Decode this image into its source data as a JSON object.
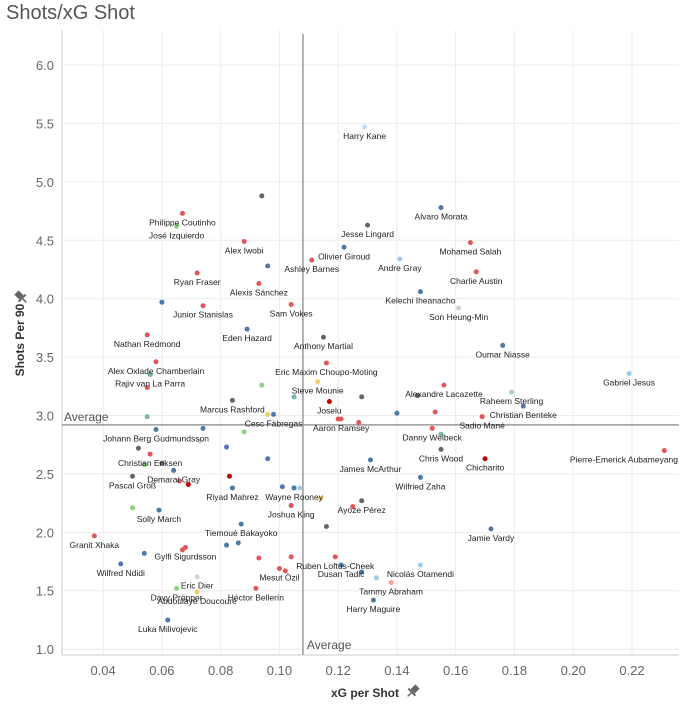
{
  "chart_data": {
    "type": "scatter",
    "title": "Shots/xG Shot",
    "xlabel": "xG per Shot",
    "ylabel": "Shots Per 90",
    "xlim": [
      0.026,
      0.236
    ],
    "ylim": [
      0.95,
      6.3
    ],
    "x_ticks": [
      "0.04",
      "0.06",
      "0.08",
      "0.10",
      "0.12",
      "0.14",
      "0.16",
      "0.18",
      "0.20",
      "0.22"
    ],
    "y_ticks": [
      "1.0",
      "1.5",
      "2.0",
      "2.5",
      "3.0",
      "3.5",
      "4.0",
      "4.5",
      "5.0",
      "5.5",
      "6.0"
    ],
    "x_tick_values": [
      0.04,
      0.06,
      0.08,
      0.1,
      0.12,
      0.14,
      0.16,
      0.18,
      0.2,
      0.22
    ],
    "y_tick_values": [
      1.0,
      1.5,
      2.0,
      2.5,
      3.0,
      3.5,
      4.0,
      4.5,
      5.0,
      5.5,
      6.0
    ],
    "grid": true,
    "reference_lines": {
      "x": {
        "value": 0.108,
        "label": "Average"
      },
      "y": {
        "value": 2.92,
        "label": "Average"
      }
    },
    "points": [
      {
        "label": "Harry Kane",
        "x": 0.129,
        "y": 5.47,
        "color": "#c6dbef"
      },
      {
        "label": "Alvaro Morata",
        "x": 0.155,
        "y": 4.78,
        "color": "#4e79a7"
      },
      {
        "label": "Philippe Coutinho",
        "x": 0.067,
        "y": 4.73,
        "color": "#e15759"
      },
      {
        "label": "Jesse Lingard",
        "x": 0.13,
        "y": 4.63,
        "color": "#666666"
      },
      {
        "label": "José Izquierdo",
        "x": 0.065,
        "y": 4.62,
        "color": "#8cd17d"
      },
      {
        "label": "Mohamed Salah",
        "x": 0.165,
        "y": 4.48,
        "color": "#e15759"
      },
      {
        "label": "Alex Iwobi",
        "x": 0.088,
        "y": 4.49,
        "color": "#e15759"
      },
      {
        "label": "Olivier Giroud",
        "x": 0.122,
        "y": 4.44,
        "color": "#4e79a7"
      },
      {
        "label": "Ashley Barnes",
        "x": 0.111,
        "y": 4.33,
        "color": "#e15759"
      },
      {
        "label": "Andre Gray",
        "x": 0.141,
        "y": 4.34,
        "color": "#a0cbe8"
      },
      {
        "label": "Charlie Austin",
        "x": 0.167,
        "y": 4.23,
        "color": "#e15759"
      },
      {
        "label": "Ryan Fraser",
        "x": 0.072,
        "y": 4.22,
        "color": "#e15759"
      },
      {
        "label": "Alexis Sánchez",
        "x": 0.093,
        "y": 4.13,
        "color": "#e15759"
      },
      {
        "label": "Kelechi Iheanacho",
        "x": 0.148,
        "y": 4.06,
        "color": "#4e79a7"
      },
      {
        "label": "Junior Stanislas",
        "x": 0.074,
        "y": 3.94,
        "color": "#e15759"
      },
      {
        "label": "Sam Vokes",
        "x": 0.104,
        "y": 3.95,
        "color": "#e15759"
      },
      {
        "label": "Son Heung-Min",
        "x": 0.161,
        "y": 3.92,
        "color": "#d3d3d3"
      },
      {
        "label": "Eden Hazard",
        "x": 0.089,
        "y": 3.74,
        "color": "#4e79a7"
      },
      {
        "label": "Nathan Redmond",
        "x": 0.055,
        "y": 3.69,
        "color": "#e15759"
      },
      {
        "label": "Anthony Martial",
        "x": 0.115,
        "y": 3.67,
        "color": "#666666"
      },
      {
        "label": "Oumar Niasse",
        "x": 0.176,
        "y": 3.6,
        "color": "#4e79a7"
      },
      {
        "label": "Eric Maxim Choupo-Moting",
        "x": 0.116,
        "y": 3.45,
        "color": "#e15759"
      },
      {
        "label": "Alex Oxlade Chamberlain",
        "x": 0.058,
        "y": 3.46,
        "color": "#e15759"
      },
      {
        "label": "Rajiv van La Parra",
        "x": 0.056,
        "y": 3.35,
        "color": "#76b7b2"
      },
      {
        "label": "Gabriel Jesus",
        "x": 0.219,
        "y": 3.36,
        "color": "#a0cbe8"
      },
      {
        "label": "Alexandre Lacazette",
        "x": 0.156,
        "y": 3.26,
        "color": "#e15759"
      },
      {
        "label": "Steve Mounie",
        "x": 0.113,
        "y": 3.29,
        "color": "#f1ce63"
      },
      {
        "label": "Raheem Sterling",
        "x": 0.179,
        "y": 3.2,
        "color": "#a0cbe8"
      },
      {
        "label": "Marcus Rashford",
        "x": 0.084,
        "y": 3.13,
        "color": "#666666"
      },
      {
        "label": "Joselu",
        "x": 0.117,
        "y": 3.12,
        "color": "#c00000"
      },
      {
        "label": "Christian Benteke",
        "x": 0.183,
        "y": 3.08,
        "color": "#4e79a7"
      },
      {
        "label": "Cesc Fàbregas",
        "x": 0.098,
        "y": 3.01,
        "color": "#4e79a7"
      },
      {
        "label": "Sadio Mané",
        "x": 0.169,
        "y": 2.99,
        "color": "#e15759"
      },
      {
        "label": "Aaron Ramsey",
        "x": 0.121,
        "y": 2.97,
        "color": "#e15759"
      },
      {
        "label": "Danny Welbeck",
        "x": 0.152,
        "y": 2.89,
        "color": "#e15759"
      },
      {
        "label": "Johann Berg Gudmundsson",
        "x": 0.058,
        "y": 2.88,
        "color": "#4e79a7"
      },
      {
        "label": "Chris Wood",
        "x": 0.155,
        "y": 2.71,
        "color": "#666666"
      },
      {
        "label": "Pierre-Emerick Aubameyang",
        "x": 0.231,
        "y": 2.7,
        "color": "#e15759"
      },
      {
        "label": "Christian Eriksen",
        "x": 0.056,
        "y": 2.67,
        "color": "#e15759"
      },
      {
        "label": "Chicharito",
        "x": 0.17,
        "y": 2.63,
        "color": "#c00000"
      },
      {
        "label": "Demarai Gray",
        "x": 0.064,
        "y": 2.53,
        "color": "#4e79a7"
      },
      {
        "label": "James McArthur",
        "x": 0.131,
        "y": 2.62,
        "color": "#4e79a7"
      },
      {
        "label": "Pascal Groß",
        "x": 0.05,
        "y": 2.48,
        "color": "#666666"
      },
      {
        "label": "Wayne Rooney",
        "x": 0.105,
        "y": 2.38,
        "color": "#4e79a7"
      },
      {
        "label": "Wilfried Zaha",
        "x": 0.148,
        "y": 2.47,
        "color": "#4e79a7"
      },
      {
        "label": "Riyad Mahrez",
        "x": 0.084,
        "y": 2.38,
        "color": "#4e79a7"
      },
      {
        "label": "Ayoze Pérez",
        "x": 0.128,
        "y": 2.27,
        "color": "#666666"
      },
      {
        "label": "Joshua King",
        "x": 0.104,
        "y": 2.23,
        "color": "#e15759"
      },
      {
        "label": "Solly March",
        "x": 0.059,
        "y": 2.19,
        "color": "#4e79a7"
      },
      {
        "label": "Tiemoué Bakayoko",
        "x": 0.087,
        "y": 2.07,
        "color": "#4e79a7"
      },
      {
        "label": "Jamie Vardy",
        "x": 0.172,
        "y": 2.03,
        "color": "#4e79a7"
      },
      {
        "label": "Granit Xhaka",
        "x": 0.037,
        "y": 1.97,
        "color": "#e15759"
      },
      {
        "label": "Ruben Loftus-Cheek",
        "x": 0.119,
        "y": 1.79,
        "color": "#e15759"
      },
      {
        "label": "Gylfi Sigurdsson",
        "x": 0.068,
        "y": 1.87,
        "color": "#e15759"
      },
      {
        "label": "Nicolás Otamendi",
        "x": 0.148,
        "y": 1.72,
        "color": "#a0cbe8"
      },
      {
        "label": "Wilfred Ndidi",
        "x": 0.046,
        "y": 1.73,
        "color": "#4e79a7"
      },
      {
        "label": "Dusan Tadic",
        "x": 0.121,
        "y": 1.72,
        "color": "#4e79a7"
      },
      {
        "label": "Mesut Özil",
        "x": 0.1,
        "y": 1.69,
        "color": "#e15759"
      },
      {
        "label": "Eric Dier",
        "x": 0.072,
        "y": 1.62,
        "color": "#d3d3d3"
      },
      {
        "label": "Tammy Abraham",
        "x": 0.138,
        "y": 1.57,
        "color": "#ff9d9a"
      },
      {
        "label": "Davy Pröpper",
        "x": 0.065,
        "y": 1.52,
        "color": "#8cd17d"
      },
      {
        "label": "Héctor Bellerín",
        "x": 0.092,
        "y": 1.52,
        "color": "#e15759"
      },
      {
        "label": "Abdoulaye Doucouré",
        "x": 0.072,
        "y": 1.49,
        "color": "#f1ce63"
      },
      {
        "label": "Harry Maguire",
        "x": 0.132,
        "y": 1.42,
        "color": "#4e79a7"
      },
      {
        "label": "Luka Milivojevic",
        "x": 0.062,
        "y": 1.25,
        "color": "#4e79a7"
      }
    ],
    "extra_points": [
      {
        "x": 0.094,
        "y": 4.88,
        "color": "#666666"
      },
      {
        "x": 0.096,
        "y": 4.28,
        "color": "#4e79a7"
      },
      {
        "x": 0.06,
        "y": 3.97,
        "color": "#4e79a7"
      },
      {
        "x": 0.094,
        "y": 3.26,
        "color": "#8cd17d"
      },
      {
        "x": 0.055,
        "y": 3.24,
        "color": "#e15759"
      },
      {
        "x": 0.105,
        "y": 3.16,
        "color": "#76b7b2"
      },
      {
        "x": 0.128,
        "y": 3.16,
        "color": "#666666"
      },
      {
        "x": 0.147,
        "y": 3.17,
        "color": "#666666"
      },
      {
        "x": 0.153,
        "y": 3.03,
        "color": "#e15759"
      },
      {
        "x": 0.14,
        "y": 3.02,
        "color": "#4e79a7"
      },
      {
        "x": 0.096,
        "y": 3.01,
        "color": "#f1ce63"
      },
      {
        "x": 0.12,
        "y": 2.97,
        "color": "#e15759"
      },
      {
        "x": 0.127,
        "y": 2.94,
        "color": "#e15759"
      },
      {
        "x": 0.055,
        "y": 2.99,
        "color": "#76b7b2"
      },
      {
        "x": 0.074,
        "y": 2.89,
        "color": "#4e79a7"
      },
      {
        "x": 0.088,
        "y": 2.86,
        "color": "#8cd17d"
      },
      {
        "x": 0.155,
        "y": 2.84,
        "color": "#76b7b2"
      },
      {
        "x": 0.073,
        "y": 2.78,
        "color": "#d3d3d3"
      },
      {
        "x": 0.082,
        "y": 2.73,
        "color": "#4e79a7"
      },
      {
        "x": 0.052,
        "y": 2.72,
        "color": "#666666"
      },
      {
        "x": 0.096,
        "y": 2.63,
        "color": "#4e79a7"
      },
      {
        "x": 0.06,
        "y": 2.59,
        "color": "#666666"
      },
      {
        "x": 0.054,
        "y": 2.58,
        "color": "#8cd17d"
      },
      {
        "x": 0.083,
        "y": 2.48,
        "color": "#c00000"
      },
      {
        "x": 0.066,
        "y": 2.44,
        "color": "#e15759"
      },
      {
        "x": 0.069,
        "y": 2.41,
        "color": "#c00000"
      },
      {
        "x": 0.101,
        "y": 2.39,
        "color": "#4e79a7"
      },
      {
        "x": 0.107,
        "y": 2.38,
        "color": "#a0cbe8"
      },
      {
        "x": 0.125,
        "y": 2.22,
        "color": "#e15759"
      },
      {
        "x": 0.114,
        "y": 2.29,
        "color": "#f1ce63"
      },
      {
        "x": 0.05,
        "y": 2.21,
        "color": "#8cd17d"
      },
      {
        "x": 0.116,
        "y": 2.05,
        "color": "#666666"
      },
      {
        "x": 0.086,
        "y": 1.91,
        "color": "#4e79a7"
      },
      {
        "x": 0.082,
        "y": 1.89,
        "color": "#4e79a7"
      },
      {
        "x": 0.067,
        "y": 1.85,
        "color": "#e15759"
      },
      {
        "x": 0.054,
        "y": 1.82,
        "color": "#4e79a7"
      },
      {
        "x": 0.093,
        "y": 1.78,
        "color": "#e15759"
      },
      {
        "x": 0.104,
        "y": 1.79,
        "color": "#e15759"
      },
      {
        "x": 0.128,
        "y": 1.66,
        "color": "#4e79a7"
      },
      {
        "x": 0.133,
        "y": 1.61,
        "color": "#a0cbe8"
      },
      {
        "x": 0.102,
        "y": 1.67,
        "color": "#e15759"
      }
    ]
  }
}
